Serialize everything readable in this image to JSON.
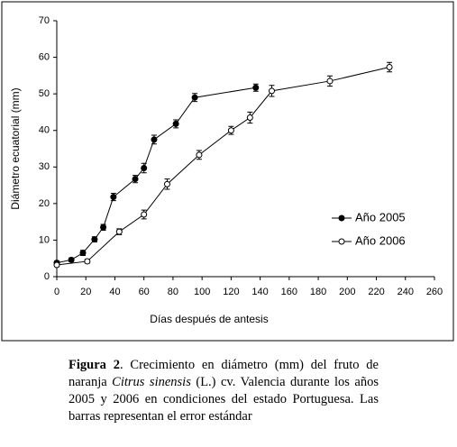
{
  "chart_data": {
    "type": "line",
    "xlabel": "Días después de antesis",
    "ylabel": "Diámetro ecuatorial (mm)",
    "xlim": [
      0,
      260
    ],
    "xticks": [
      0,
      20,
      40,
      60,
      80,
      100,
      120,
      140,
      160,
      180,
      200,
      220,
      240,
      260
    ],
    "ylim": [
      0,
      70
    ],
    "yticks": [
      0,
      10,
      20,
      30,
      40,
      50,
      60,
      70
    ],
    "grid": false,
    "legend": "center right",
    "series": [
      {
        "name": "Año 2005",
        "color": "#000000",
        "marker": "filled",
        "x": [
          0,
          10,
          18,
          26,
          32,
          39,
          54,
          60,
          67,
          82,
          95,
          137
        ],
        "values": [
          3.8,
          4.6,
          6.5,
          10.2,
          13.5,
          21.8,
          26.7,
          29.7,
          37.5,
          41.8,
          49,
          51.7
        ],
        "errors": [
          0.5,
          0.5,
          0.7,
          0.7,
          0.8,
          1,
          1,
          1.3,
          1.2,
          1.1,
          1.1,
          1
        ]
      },
      {
        "name": "Año 2006",
        "color": "#000000",
        "marker": "open",
        "x": [
          0,
          21,
          43,
          60,
          76,
          98,
          120,
          133,
          148,
          188,
          229
        ],
        "values": [
          3.2,
          4.2,
          12.3,
          17,
          25.3,
          33.3,
          40,
          43.5,
          50.8,
          53.5,
          57.3
        ],
        "errors": [
          0.4,
          0.5,
          0.8,
          1.2,
          1.4,
          1.2,
          1.1,
          1.5,
          1.5,
          1.4,
          1.3
        ]
      }
    ]
  },
  "caption": {
    "label": "Figura 2",
    "text_before": ". Crecimiento en diámetro (mm) del fruto de naranja ",
    "italic": "Citrus sinensis",
    "text_after": " (L.) cv. Valencia durante los años 2005 y 2006 en condiciones del estado Portuguesa. Las barras representan el error estándar"
  }
}
